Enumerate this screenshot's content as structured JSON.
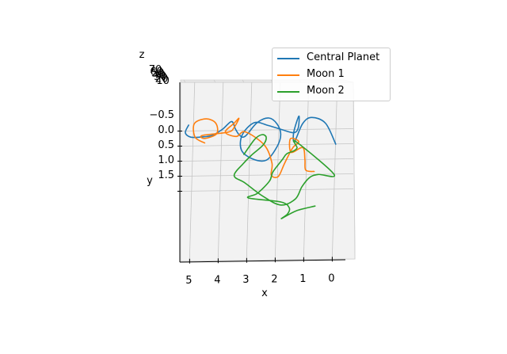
{
  "chart_data": {
    "type": "line",
    "projection": "3d",
    "title": "",
    "xlabel": "x",
    "ylabel": "y",
    "zlabel": "z",
    "x_ticks": [
      "5",
      "4",
      "3",
      "2",
      "1",
      "0"
    ],
    "y_ticks": [
      "−0.5",
      "0.0",
      "0.5",
      "1.0",
      "1.5"
    ],
    "z_ticks": [
      "70",
      "60",
      "50",
      "40",
      "30",
      "20",
      "10"
    ],
    "z_tick_labels_visible": [
      "70",
      "10"
    ],
    "grid": true,
    "legend_position": "top-right",
    "series": [
      {
        "name": "Central Planet",
        "color": "#1f77b4",
        "x": [
          5.2,
          5.3,
          5.1,
          4.7,
          4.35,
          4.0,
          3.7,
          3.55,
          3.4,
          3.2,
          2.8,
          2.4,
          2.1,
          1.95,
          2.05,
          2.4,
          2.9,
          3.3,
          3.3,
          2.9,
          2.4,
          1.9,
          1.5,
          1.35,
          1.35,
          1.5,
          1.45,
          1.2,
          0.9,
          0.4,
          0.0
        ],
        "y": [
          -0.7,
          -0.45,
          -0.3,
          -0.3,
          -0.35,
          -0.55,
          -0.8,
          -0.55,
          -0.35,
          -0.3,
          -0.75,
          -0.9,
          -0.7,
          -0.35,
          0.05,
          0.5,
          0.45,
          0.15,
          -0.35,
          -0.75,
          -0.65,
          -0.5,
          -0.4,
          -0.55,
          -0.95,
          -0.4,
          -0.1,
          -0.7,
          -0.9,
          -0.7,
          0.0
        ]
      },
      {
        "name": "Moon 1",
        "color": "#ff7f0e",
        "x": [
          4.6,
          4.95,
          5.0,
          4.6,
          4.25,
          4.2,
          4.6,
          4.7,
          3.8,
          3.6,
          3.45,
          3.6,
          3.9,
          3.5,
          3.2,
          2.5,
          2.2,
          2.2,
          1.95,
          1.75,
          1.5,
          1.3,
          1.6,
          1.55,
          1.15,
          1.05,
          1.0,
          0.7
        ],
        "y": [
          -0.1,
          -0.3,
          -0.75,
          -0.9,
          -0.75,
          -0.4,
          -0.25,
          -0.35,
          -0.45,
          -0.6,
          -0.9,
          -0.75,
          -0.45,
          -0.3,
          -0.45,
          0.0,
          0.6,
          1.0,
          1.05,
          0.6,
          0.1,
          -0.1,
          -0.2,
          0.25,
          0.1,
          0.5,
          0.85,
          0.9
        ]
      },
      {
        "name": "Moon 2",
        "color": "#2ca02c",
        "x": [
          3.2,
          2.85,
          2.6,
          2.45,
          2.55,
          2.9,
          3.2,
          3.5,
          3.1,
          2.45,
          1.8,
          1.3,
          1.1,
          0.85,
          0.55,
          0.0,
          1.4,
          1.35,
          1.45,
          1.7,
          1.85,
          2.15,
          2.25,
          2.65,
          2.95,
          1.8,
          1.5,
          1.55,
          1.75,
          1.25,
          0.6
        ],
        "y": [
          0.3,
          -0.2,
          -0.35,
          -0.25,
          0.0,
          0.3,
          0.6,
          1.0,
          1.25,
          1.7,
          2.0,
          1.8,
          1.4,
          1.1,
          1.0,
          1.0,
          -0.1,
          0.1,
          0.2,
          0.3,
          0.5,
          0.9,
          1.2,
          1.6,
          1.75,
          1.9,
          2.1,
          2.3,
          2.45,
          2.2,
          2.05
        ]
      }
    ]
  }
}
